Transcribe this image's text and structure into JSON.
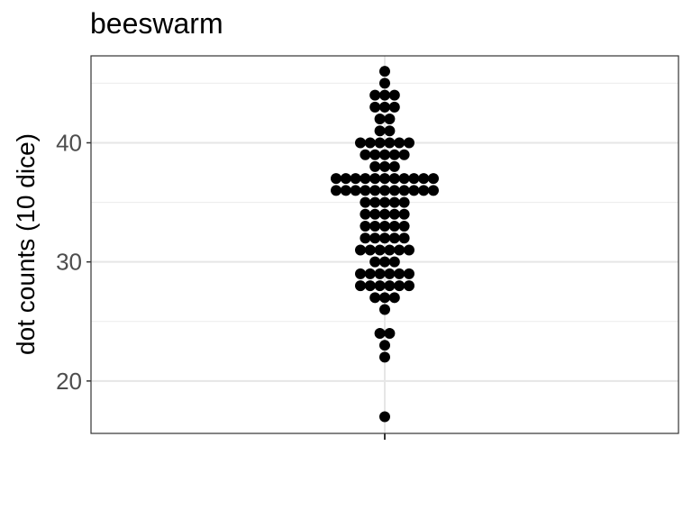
{
  "chart_data": {
    "type": "scatter",
    "subtype": "beeswarm",
    "title": "beeswarm",
    "xlabel": "",
    "ylabel": "dot counts (10 dice)",
    "yticks": [
      20,
      30,
      40
    ],
    "ylim": [
      15.6,
      47.3
    ],
    "grid": true,
    "legend": "none",
    "point_color": "#000000",
    "values": [
      17,
      22,
      23,
      24,
      24,
      26,
      27,
      27,
      27,
      28,
      28,
      28,
      28,
      28,
      28,
      29,
      29,
      29,
      29,
      29,
      29,
      30,
      30,
      30,
      31,
      31,
      31,
      31,
      31,
      31,
      32,
      32,
      32,
      32,
      32,
      33,
      33,
      33,
      33,
      33,
      34,
      34,
      34,
      34,
      34,
      35,
      35,
      35,
      35,
      35,
      36,
      36,
      36,
      36,
      36,
      36,
      36,
      36,
      36,
      36,
      36,
      37,
      37,
      37,
      37,
      37,
      37,
      37,
      37,
      37,
      37,
      37,
      38,
      38,
      38,
      39,
      39,
      39,
      39,
      39,
      40,
      40,
      40,
      40,
      40,
      40,
      41,
      41,
      42,
      42,
      43,
      43,
      43,
      44,
      44,
      44,
      45,
      46
    ]
  }
}
